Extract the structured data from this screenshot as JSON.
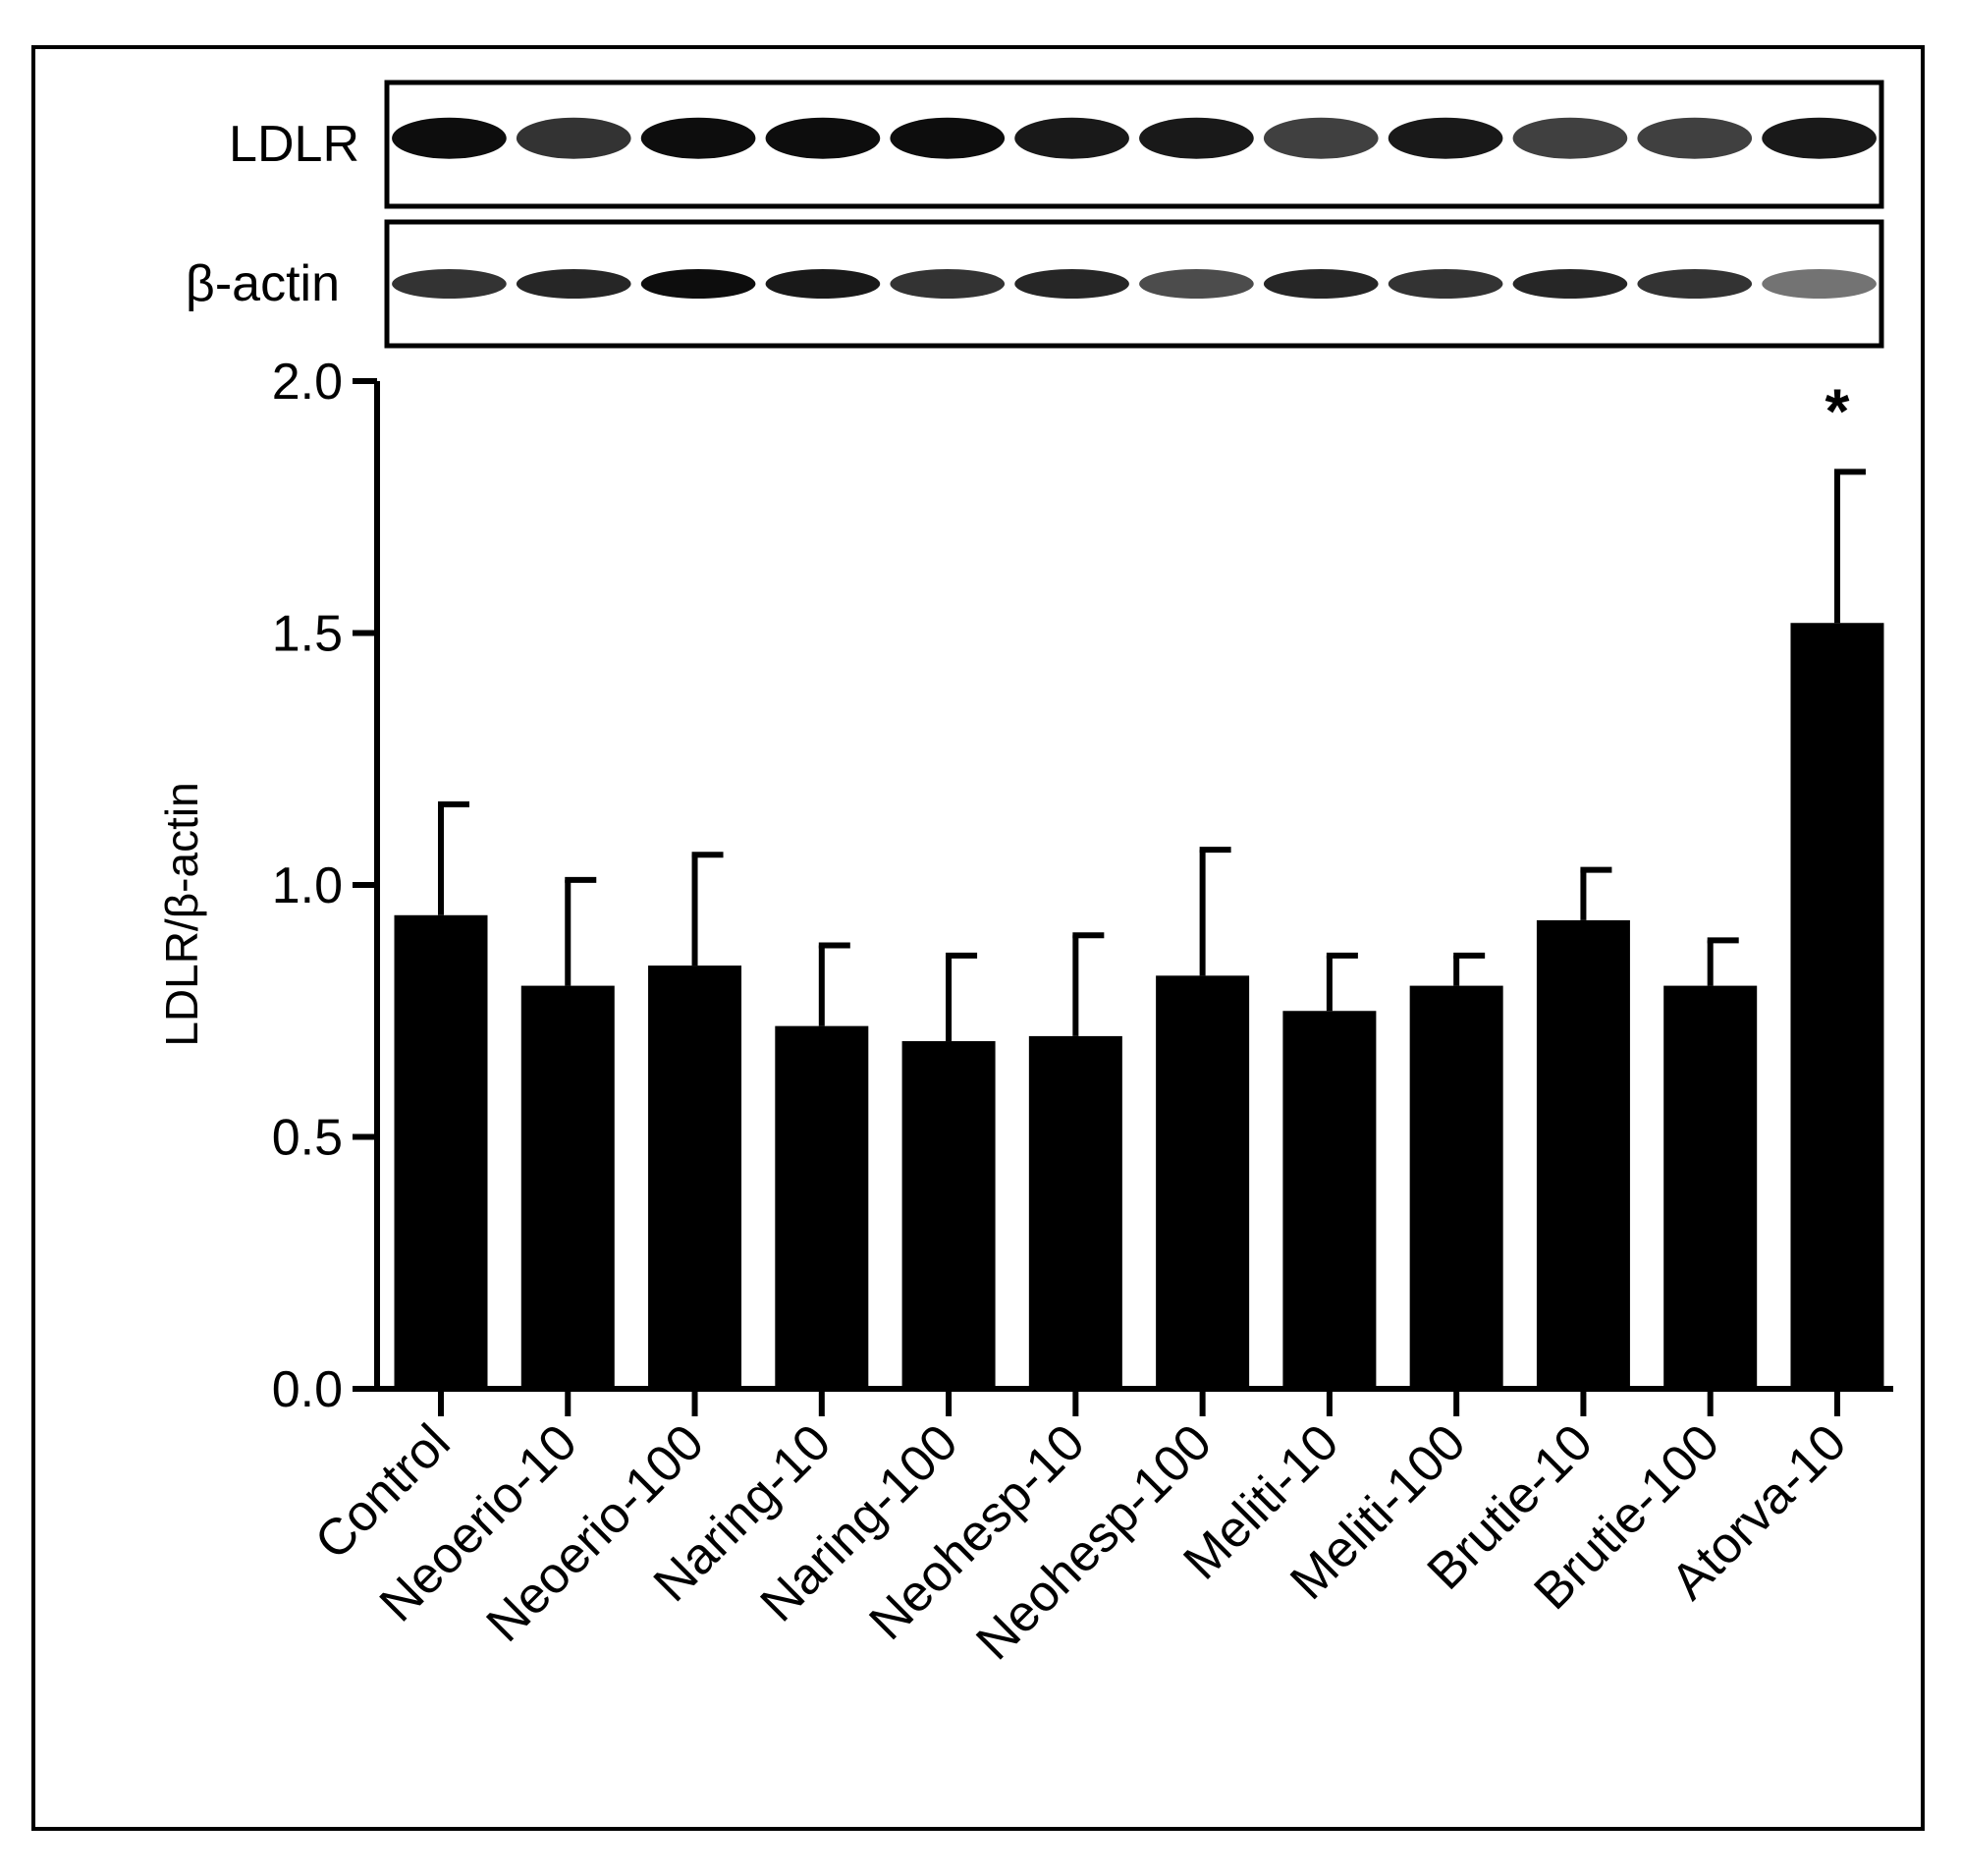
{
  "blot": {
    "rows": [
      {
        "label": "LDLR",
        "intensities": [
          0.95,
          0.8,
          0.95,
          0.95,
          0.95,
          0.9,
          0.9,
          0.75,
          0.9,
          0.75,
          0.75,
          0.9
        ]
      },
      {
        "label": "β-actin",
        "intensities": [
          0.8,
          0.85,
          0.95,
          0.9,
          0.8,
          0.85,
          0.7,
          0.85,
          0.8,
          0.85,
          0.8,
          0.55
        ]
      }
    ]
  },
  "chart_data": {
    "type": "bar",
    "ylabel": "LDLR/β-actin",
    "ylim": [
      0,
      2.0
    ],
    "yticks": [
      0.0,
      0.5,
      1.0,
      1.5,
      2.0
    ],
    "ytick_labels": [
      "0.0",
      "0.5",
      "1.0",
      "1.5",
      "2.0"
    ],
    "categories": [
      "Control",
      "Neoerio-10",
      "Neoerio-100",
      "Naring-10",
      "Naring-100",
      "Neohesp-10",
      "Neohesp-100",
      "Meliti-10",
      "Meliti-100",
      "Brutie-10",
      "Brutie-100",
      "Atorva-10"
    ],
    "values": [
      0.94,
      0.8,
      0.84,
      0.72,
      0.69,
      0.7,
      0.82,
      0.75,
      0.8,
      0.93,
      0.8,
      1.52
    ],
    "errors": [
      0.22,
      0.21,
      0.22,
      0.16,
      0.17,
      0.2,
      0.25,
      0.11,
      0.06,
      0.1,
      0.09,
      0.3
    ],
    "annotations": [
      {
        "category": "Atorva-10",
        "text": "*"
      }
    ],
    "bar_color": "#000000",
    "grid": false,
    "legend": "none"
  }
}
